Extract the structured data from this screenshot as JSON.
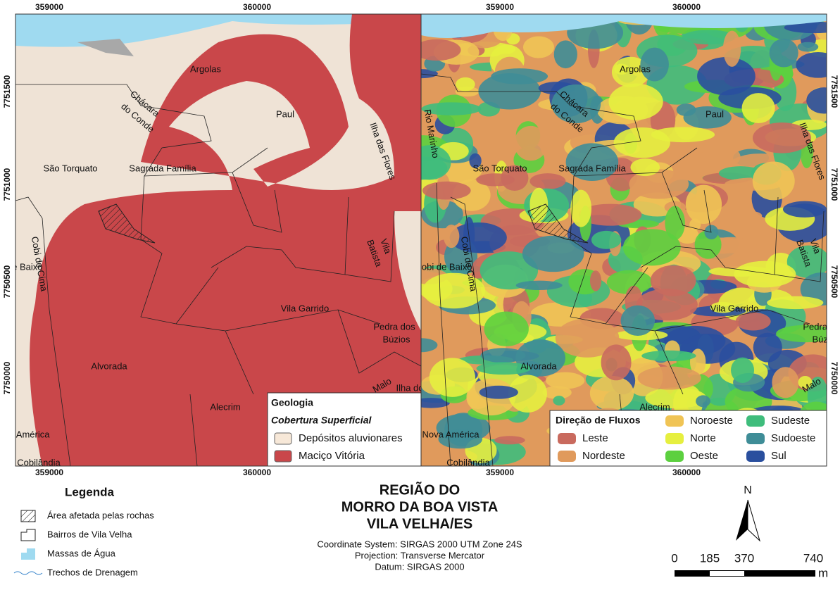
{
  "grid_labels": {
    "eastings": [
      "359000",
      "360000"
    ],
    "northings": [
      "7751500",
      "7751000",
      "7750500",
      "7750000"
    ]
  },
  "place_names": [
    "Argolas",
    "Chácara",
    "do Conde",
    "Paul",
    "Ilha das Flores",
    "São Torquato",
    "Sagrada Família",
    "Cobi de Cima",
    "Cobi de Baixo",
    "Vila",
    "Batista",
    "Vila Garrido",
    "Pedra dos",
    "Búzios",
    "Alvorada",
    "Alecrim",
    "Malo",
    "Nova América",
    "Cobilândia",
    "Ilha do",
    "Rio Marinho"
  ],
  "geology_legend": {
    "title": "Geologia",
    "subtitle": "Cobertura Superficial",
    "items": [
      {
        "label": "Depósitos aluvionares",
        "color": "#f7e8d8"
      },
      {
        "label": "Maciço Vitória",
        "color": "#c9474a"
      }
    ]
  },
  "flow_legend": {
    "title": "Direção de Fluxos",
    "items": [
      {
        "label": "Leste",
        "color": "#c96a5e"
      },
      {
        "label": "Nordeste",
        "color": "#e09a5c"
      },
      {
        "label": "Noroeste",
        "color": "#f0c455"
      },
      {
        "label": "Norte",
        "color": "#e6ef3f"
      },
      {
        "label": "Oeste",
        "color": "#5cd03f"
      },
      {
        "label": "Sudeste",
        "color": "#3fbd7c"
      },
      {
        "label": "Sudoeste",
        "color": "#3f8d97"
      },
      {
        "label": "Sul",
        "color": "#2a4f9e"
      }
    ]
  },
  "legend": {
    "title": "Legenda",
    "items": [
      "Área afetada pelas rochas",
      "Bairros de Vila Velha",
      "Massas de Água",
      "Trechos de Drenagem"
    ]
  },
  "title": [
    "REGIÃO DO",
    "MORRO DA BOA VISTA",
    "VILA VELHA/ES"
  ],
  "metadata": [
    "Coordinate System: SIRGAS 2000 UTM Zone 24S",
    "Projection: Transverse Mercator",
    "Datum: SIRGAS 2000"
  ],
  "north_arrow": "N",
  "scale_bar": {
    "labels": [
      "0",
      "185",
      "370",
      "740"
    ],
    "unit": "m"
  }
}
